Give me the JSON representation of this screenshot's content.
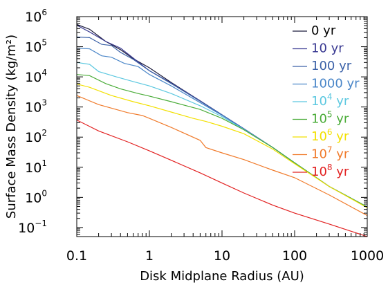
{
  "chart_data": {
    "type": "line",
    "xlabel": "Disk Midplane Radius (AU)",
    "ylabel": "Surface Mass Density (kg/m²)",
    "xscale": "log",
    "yscale": "log",
    "xlim": [
      0.1,
      1000
    ],
    "ylim": [
      0.05,
      1000000
    ],
    "x_ticks": [
      {
        "value": 0.1,
        "label": "0.1"
      },
      {
        "value": 1,
        "label": "1"
      },
      {
        "value": 10,
        "label": "10"
      },
      {
        "value": 100,
        "label": "100"
      },
      {
        "value": 1000,
        "label": "1000"
      }
    ],
    "y_ticks": [
      {
        "value": 0.1,
        "label": "10",
        "exp": "−1"
      },
      {
        "value": 1,
        "label": "10",
        "exp": "0"
      },
      {
        "value": 10,
        "label": "10",
        "exp": "1"
      },
      {
        "value": 100,
        "label": "10",
        "exp": "2"
      },
      {
        "value": 1000,
        "label": "10",
        "exp": "3"
      },
      {
        "value": 10000,
        "label": "10",
        "exp": "4"
      },
      {
        "value": 100000,
        "label": "10",
        "exp": "5"
      },
      {
        "value": 1000000,
        "label": "10",
        "exp": "6"
      }
    ],
    "legend_position": "top-right",
    "series": [
      {
        "name": "0 yr",
        "label": "0 yr",
        "color": "#1a1a3a",
        "points": [
          [
            0.1,
            550000
          ],
          [
            0.15,
            380000
          ],
          [
            0.25,
            150000
          ],
          [
            0.4,
            80000
          ],
          [
            0.6,
            40000
          ],
          [
            1,
            20000
          ],
          [
            2,
            6500
          ],
          [
            5,
            1600
          ],
          [
            10,
            550
          ],
          [
            20,
            190
          ],
          [
            50,
            45
          ],
          [
            100,
            14
          ],
          [
            300,
            2.3
          ],
          [
            1000,
            0.48
          ]
        ]
      },
      {
        "name": "10 yr",
        "label": "10 yr",
        "exp": "",
        "color": "#3a3a92",
        "points": [
          [
            0.1,
            520000
          ],
          [
            0.15,
            310000
          ],
          [
            0.25,
            150000
          ],
          [
            0.4,
            90000
          ],
          [
            0.6,
            42000
          ],
          [
            1,
            16000
          ],
          [
            2,
            6200
          ],
          [
            5,
            1600
          ],
          [
            10,
            550
          ],
          [
            20,
            190
          ],
          [
            50,
            45
          ],
          [
            100,
            14
          ],
          [
            300,
            2.3
          ],
          [
            1000,
            0.48
          ]
        ]
      },
      {
        "name": "100 yr",
        "label": "100 yr",
        "exp": "",
        "color": "#3c62a8",
        "points": [
          [
            0.1,
            210000
          ],
          [
            0.15,
            200000
          ],
          [
            0.22,
            120000
          ],
          [
            0.3,
            110000
          ],
          [
            0.4,
            65000
          ],
          [
            0.6,
            38000
          ],
          [
            1,
            16000
          ],
          [
            2,
            6000
          ],
          [
            5,
            1550
          ],
          [
            10,
            550
          ],
          [
            20,
            190
          ],
          [
            50,
            45
          ],
          [
            100,
            14
          ],
          [
            300,
            2.3
          ],
          [
            1000,
            0.48
          ]
        ]
      },
      {
        "name": "1000 yr",
        "label": "1000 yr",
        "exp": "",
        "color": "#4a86c8",
        "points": [
          [
            0.1,
            90000
          ],
          [
            0.15,
            85000
          ],
          [
            0.22,
            50000
          ],
          [
            0.3,
            45000
          ],
          [
            0.45,
            28000
          ],
          [
            0.7,
            22000
          ],
          [
            1,
            12000
          ],
          [
            2,
            5000
          ],
          [
            5,
            1400
          ],
          [
            10,
            530
          ],
          [
            20,
            185
          ],
          [
            50,
            45
          ],
          [
            100,
            14
          ],
          [
            300,
            2.3
          ],
          [
            1000,
            0.48
          ]
        ]
      },
      {
        "name": "10^4 yr",
        "label": "10",
        "exp": "4",
        "unit": " yr",
        "color": "#5cc8e0",
        "points": [
          [
            0.1,
            30000
          ],
          [
            0.15,
            26000
          ],
          [
            0.2,
            15000
          ],
          [
            0.35,
            10000
          ],
          [
            0.6,
            7000
          ],
          [
            1,
            5000
          ],
          [
            2,
            2800
          ],
          [
            5,
            1100
          ],
          [
            10,
            480
          ],
          [
            20,
            180
          ],
          [
            50,
            45
          ],
          [
            100,
            14
          ],
          [
            300,
            2.3
          ],
          [
            1000,
            0.48
          ]
        ]
      },
      {
        "name": "10^5 yr",
        "label": "10",
        "exp": "5",
        "unit": " yr",
        "color": "#4aac38",
        "points": [
          [
            0.1,
            12000
          ],
          [
            0.15,
            11000
          ],
          [
            0.25,
            6000
          ],
          [
            0.4,
            4000
          ],
          [
            0.7,
            2800
          ],
          [
            1,
            2300
          ],
          [
            2,
            1500
          ],
          [
            5,
            830
          ],
          [
            10,
            420
          ],
          [
            20,
            175
          ],
          [
            50,
            45
          ],
          [
            100,
            14
          ],
          [
            300,
            2.3
          ],
          [
            1000,
            0.48
          ]
        ]
      },
      {
        "name": "10^6 yr",
        "label": "10",
        "exp": "6",
        "unit": " yr",
        "color": "#f2e000",
        "points": [
          [
            0.1,
            5800
          ],
          [
            0.15,
            4500
          ],
          [
            0.3,
            2400
          ],
          [
            0.6,
            1500
          ],
          [
            1,
            1100
          ],
          [
            2,
            680
          ],
          [
            4,
            420
          ],
          [
            6,
            330
          ],
          [
            10,
            230
          ],
          [
            20,
            130
          ],
          [
            50,
            40
          ],
          [
            100,
            13
          ],
          [
            300,
            2.3
          ],
          [
            1000,
            0.45
          ]
        ]
      },
      {
        "name": "10^7 yr",
        "label": "10",
        "exp": "7",
        "unit": " yr",
        "color": "#f07a2a",
        "points": [
          [
            0.1,
            2400
          ],
          [
            0.2,
            1200
          ],
          [
            0.5,
            650
          ],
          [
            0.8,
            520
          ],
          [
            1,
            420
          ],
          [
            2,
            210
          ],
          [
            5,
            78
          ],
          [
            6,
            45
          ],
          [
            10,
            30
          ],
          [
            20,
            18
          ],
          [
            50,
            8
          ],
          [
            100,
            4.5
          ],
          [
            300,
            1.2
          ],
          [
            1000,
            0.25
          ]
        ]
      },
      {
        "name": "10^8 yr",
        "label": "10",
        "exp": "8",
        "unit": " yr",
        "color": "#e22020",
        "points": [
          [
            0.1,
            370
          ],
          [
            0.2,
            160
          ],
          [
            0.5,
            70
          ],
          [
            1,
            35
          ],
          [
            2,
            17
          ],
          [
            5,
            6.5
          ],
          [
            10,
            3.0
          ],
          [
            20,
            1.4
          ],
          [
            50,
            0.55
          ],
          [
            100,
            0.3
          ],
          [
            300,
            0.13
          ],
          [
            1000,
            0.05
          ]
        ]
      }
    ]
  }
}
